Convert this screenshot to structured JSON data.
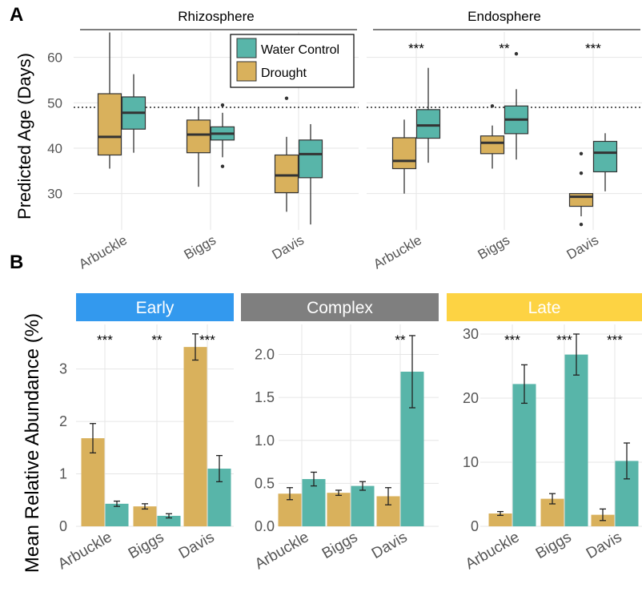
{
  "colors": {
    "drought": "#d9b15c",
    "water": "#58b5a9",
    "grid": "#e6e6e6",
    "early": "#3399ee",
    "complex": "#7f7f7f",
    "late": "#fdd343"
  },
  "panelA": {
    "label": "A",
    "ylabel": "Predicted Age (Days)",
    "legend": [
      "Water Control",
      "Drought"
    ],
    "reference_line": 49
  },
  "panelB": {
    "label": "B",
    "ylabel": "Mean Relative Abundance (%)"
  },
  "chart_data": [
    {
      "type": "box",
      "panel": "A",
      "facets": [
        "Rhizosphere",
        "Endosphere"
      ],
      "categories": [
        "Arbuckle",
        "Biggs",
        "Davis"
      ],
      "series_labels": [
        "Drought",
        "Water Control"
      ],
      "ylim": [
        22,
        67
      ],
      "yticks": [
        30,
        40,
        50,
        60
      ],
      "reference_line": 49,
      "significance": {
        "Rhizosphere": [
          "",
          "",
          ""
        ],
        "Endosphere": [
          "***",
          "**",
          "***"
        ]
      },
      "boxes": {
        "Rhizosphere": {
          "Drought": [
            {
              "min": 35.5,
              "q1": 38.5,
              "median": 42.5,
              "q3": 52,
              "max": 65.5,
              "outliers": []
            },
            {
              "min": 31.5,
              "q1": 39,
              "median": 43,
              "q3": 46.2,
              "max": 49,
              "outliers": []
            },
            {
              "min": 26,
              "q1": 30.2,
              "median": 34,
              "q3": 38.5,
              "max": 42.5,
              "outliers": [
                51
              ]
            }
          ],
          "Water Control": [
            {
              "min": 39,
              "q1": 44.2,
              "median": 47.8,
              "q3": 51.3,
              "max": 56.3,
              "outliers": []
            },
            {
              "min": 38,
              "q1": 41.8,
              "median": 43.2,
              "q3": 44.7,
              "max": 47.8,
              "outliers": [
                49.5,
                36
              ]
            },
            {
              "min": 23.2,
              "q1": 33.5,
              "median": 38.7,
              "q3": 41.8,
              "max": 45.3,
              "outliers": []
            }
          ]
        },
        "Endosphere": {
          "Drought": [
            {
              "min": 30,
              "q1": 35.5,
              "median": 37.2,
              "q3": 42.3,
              "max": 46.3,
              "outliers": []
            },
            {
              "min": 35.5,
              "q1": 38.8,
              "median": 41.2,
              "q3": 42.7,
              "max": 45,
              "outliers": [
                49.3
              ]
            },
            {
              "min": 25,
              "q1": 27.2,
              "median": 29.3,
              "q3": 30,
              "max": 30,
              "outliers": [
                38.8,
                34.5,
                23.2
              ]
            }
          ],
          "Water Control": [
            {
              "min": 36.8,
              "q1": 42.2,
              "median": 45,
              "q3": 48.5,
              "max": 57.7,
              "outliers": []
            },
            {
              "min": 37.5,
              "q1": 43.2,
              "median": 46.3,
              "q3": 49.3,
              "max": 53,
              "outliers": [
                60.8
              ]
            },
            {
              "min": 30.5,
              "q1": 34.8,
              "median": 39,
              "q3": 41.5,
              "max": 43.3,
              "outliers": []
            }
          ]
        }
      }
    },
    {
      "type": "bar",
      "panel": "B",
      "title": "Early",
      "categories": [
        "Arbuckle",
        "Biggs",
        "Davis"
      ],
      "series": [
        {
          "name": "Drought",
          "values": [
            1.68,
            0.38,
            3.42
          ],
          "errors": [
            0.28,
            0.05,
            0.25
          ]
        },
        {
          "name": "Water Control",
          "values": [
            0.43,
            0.2,
            1.1
          ],
          "errors": [
            0.05,
            0.04,
            0.25
          ]
        }
      ],
      "ylim": [
        0,
        3.85
      ],
      "yticks": [
        0,
        1,
        2,
        3
      ],
      "ytick_labels": [
        "0",
        "1",
        "2",
        "3"
      ],
      "significance": [
        "***",
        "**",
        "***"
      ]
    },
    {
      "type": "bar",
      "panel": "B",
      "title": "Complex",
      "categories": [
        "Arbuckle",
        "Biggs",
        "Davis"
      ],
      "series": [
        {
          "name": "Drought",
          "values": [
            0.38,
            0.39,
            0.35
          ],
          "errors": [
            0.07,
            0.03,
            0.1
          ]
        },
        {
          "name": "Water Control",
          "values": [
            0.55,
            0.47,
            1.8
          ],
          "errors": [
            0.08,
            0.05,
            0.42
          ]
        }
      ],
      "ylim": [
        0,
        2.35
      ],
      "yticks": [
        0,
        0.5,
        1,
        1.5,
        2
      ],
      "ytick_labels": [
        "0.0",
        "0.5",
        "1.0",
        "1.5",
        "2.0"
      ],
      "significance": [
        "",
        "",
        "**"
      ]
    },
    {
      "type": "bar",
      "panel": "B",
      "title": "Late",
      "categories": [
        "Arbuckle",
        "Biggs",
        "Davis"
      ],
      "series": [
        {
          "name": "Drought",
          "values": [
            2,
            4.3,
            1.8
          ],
          "errors": [
            0.3,
            0.8,
            0.9
          ]
        },
        {
          "name": "Water Control",
          "values": [
            22.2,
            26.8,
            10.2
          ],
          "errors": [
            3,
            3.2,
            2.8
          ]
        }
      ],
      "ylim": [
        0,
        31.5
      ],
      "yticks": [
        0,
        10,
        20,
        30
      ],
      "ytick_labels": [
        "0",
        "10",
        "20",
        "30"
      ],
      "significance": [
        "***",
        "***",
        "***"
      ]
    }
  ]
}
